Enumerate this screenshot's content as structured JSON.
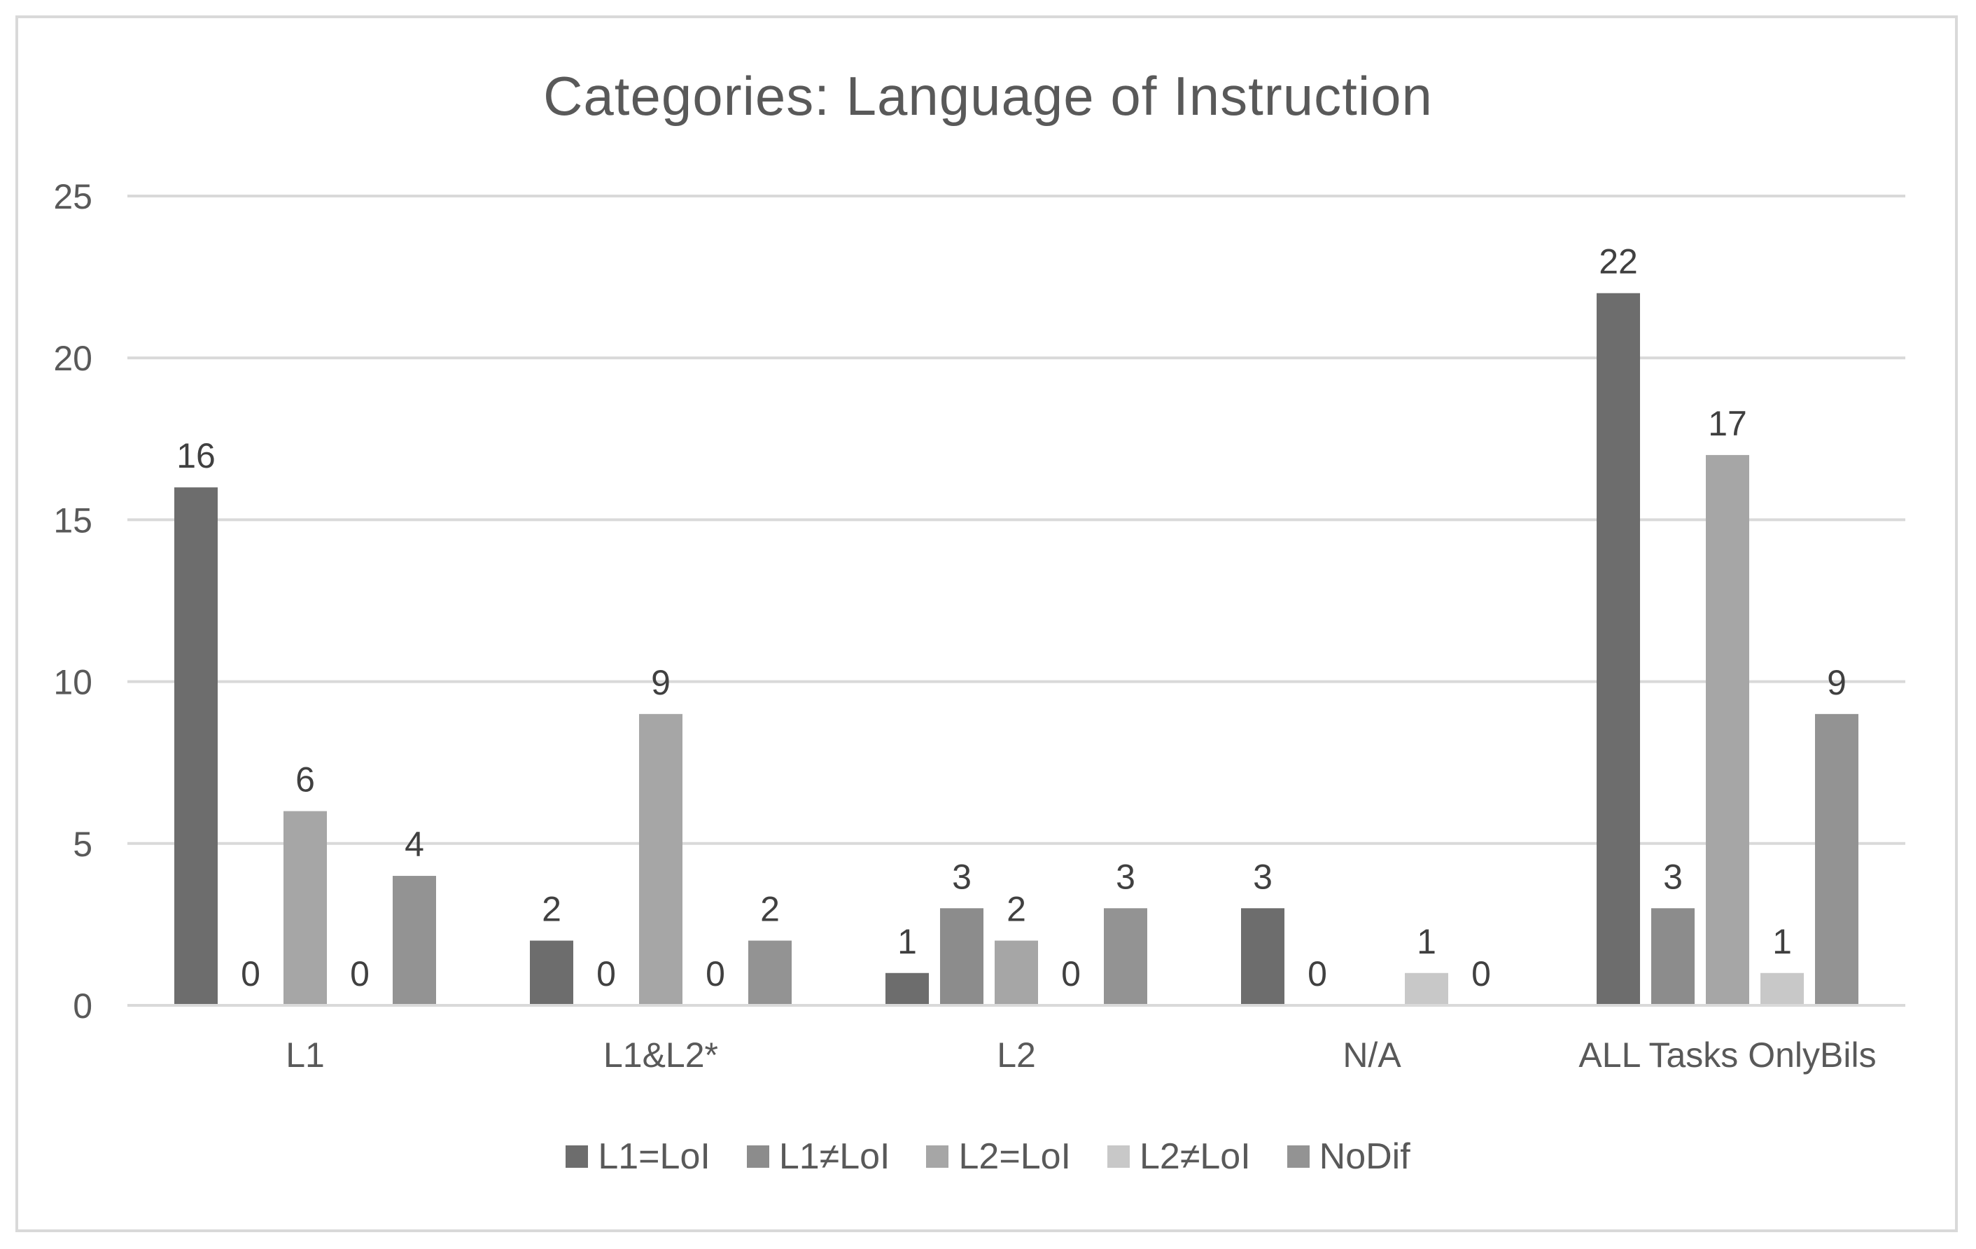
{
  "chart_data": {
    "type": "bar",
    "title": "Categories: Language of Instruction",
    "xlabel": "",
    "ylabel": "",
    "ylim": [
      0,
      25
    ],
    "yticks": [
      0,
      5,
      10,
      15,
      20,
      25
    ],
    "grid": true,
    "legend_position": "bottom",
    "categories": [
      "L1",
      "L1&L2*",
      "L2",
      "N/A",
      "ALL Tasks OnlyBils"
    ],
    "series": [
      {
        "name": "L1=LoI",
        "color": "#6d6d6d",
        "values": [
          16,
          2,
          1,
          3,
          22
        ],
        "labels": [
          "16",
          "2",
          "1",
          "3",
          "22"
        ]
      },
      {
        "name": "L1≠LoI",
        "color": "#8c8c8c",
        "values": [
          0,
          0,
          3,
          0,
          3
        ],
        "labels": [
          "0",
          "0",
          "3",
          "0",
          "3"
        ]
      },
      {
        "name": "L2=LoI",
        "color": "#a6a6a6",
        "values": [
          6,
          9,
          2,
          null,
          17
        ],
        "labels": [
          "6",
          "9",
          "2",
          "",
          "17"
        ]
      },
      {
        "name": "L2≠LoI",
        "color": "#c8c8c8",
        "values": [
          0,
          0,
          0,
          1,
          1
        ],
        "labels": [
          "0",
          "0",
          "0",
          "1",
          "1"
        ]
      },
      {
        "name": "NoDif",
        "color": "#939393",
        "values": [
          4,
          2,
          3,
          0,
          9
        ],
        "labels": [
          "4",
          "2",
          "3",
          "0",
          "9"
        ]
      }
    ]
  }
}
